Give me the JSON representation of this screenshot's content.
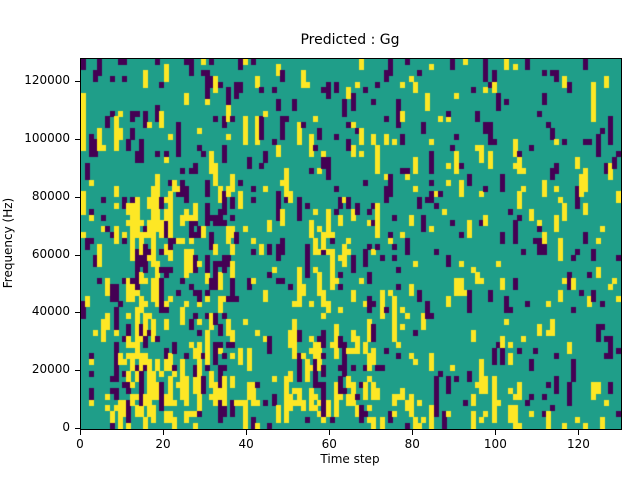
{
  "figure": {
    "title": "Predicted : Gg"
  },
  "chart_data": {
    "type": "heatmap",
    "title": "Predicted : Gg",
    "xlabel": "Time step",
    "ylabel": "Frequency (Hz)",
    "xlim": [
      0,
      130
    ],
    "ylim": [
      0,
      128000
    ],
    "x_ticks": [
      0,
      20,
      40,
      60,
      80,
      100,
      120
    ],
    "y_ticks": [
      0,
      20000,
      40000,
      60000,
      80000,
      100000,
      120000
    ],
    "grid_shape": [
      64,
      130
    ],
    "colormap": "viridis",
    "legend": "none",
    "grid": false,
    "colors": {
      "background": "#1f9e89",
      "high": "#fde725",
      "low": "#440154",
      "spine": "#000000",
      "figure_background": "#ffffff"
    },
    "value_levels": {
      "background_value": 0.5,
      "high_value": 1.0,
      "low_value": 0.0
    },
    "pattern": {
      "description": "scattered binary activations over mid-level background; dense yellow vertical streaks near time 10-36 below 84 kHz, secondary cluster near time 50-70 at low frequency, sparse isolated marks elsewhere",
      "seed": 1337,
      "base_yellow": 0.05,
      "base_purple": 0.045,
      "streak": 0.45,
      "clusters": [
        {
          "x0": 8,
          "x1": 37,
          "f0": 2000,
          "f1": 84000,
          "yellow": 0.09,
          "purple": 0.035
        },
        {
          "x0": 11,
          "x1": 17,
          "f0": 4000,
          "f1": 78000,
          "yellow": 0.18,
          "purple": 0.0
        },
        {
          "x0": 26,
          "x1": 37,
          "f0": 10000,
          "f1": 82000,
          "yellow": 0.0,
          "purple": 0.06
        },
        {
          "x0": 50,
          "x1": 71,
          "f0": 2000,
          "f1": 34000,
          "yellow": 0.1,
          "purple": 0.05
        },
        {
          "x0": 54,
          "x1": 63,
          "f0": 38000,
          "f1": 72000,
          "yellow": 0.07,
          "purple": 0.0
        },
        {
          "x0": 0,
          "x1": 130,
          "f0": 0,
          "f1": 14000,
          "yellow": 0.05,
          "purple": 0.0
        },
        {
          "x0": 80,
          "x1": 130,
          "f0": 0,
          "f1": 128000,
          "yellow": -0.012,
          "purple": -0.005
        },
        {
          "x0": 0,
          "x1": 130,
          "f0": 100000,
          "f1": 128000,
          "yellow": -0.02,
          "purple": 0.005
        }
      ]
    }
  }
}
